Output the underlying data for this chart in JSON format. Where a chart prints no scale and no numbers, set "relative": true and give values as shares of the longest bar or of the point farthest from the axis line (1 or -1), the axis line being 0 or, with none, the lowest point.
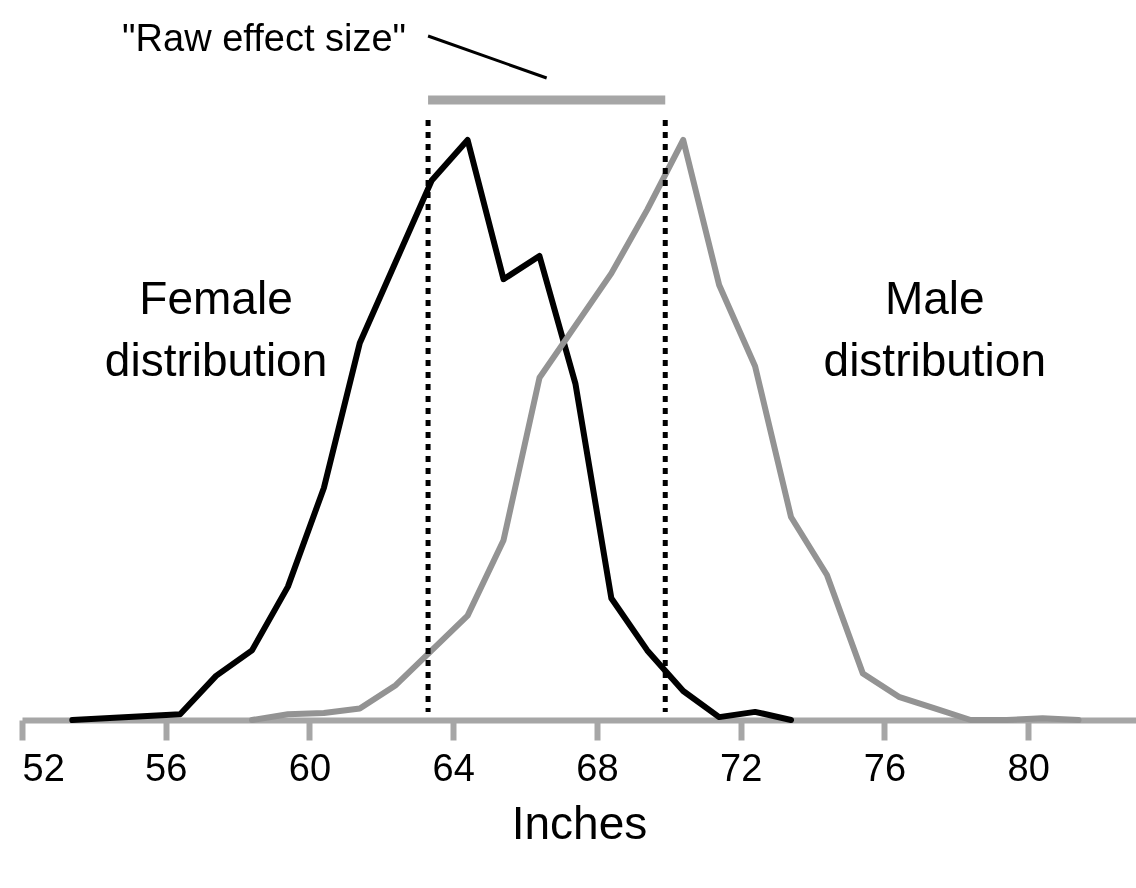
{
  "chart_data": {
    "type": "line",
    "xlabel": "Inches",
    "xlim": [
      52,
      83
    ],
    "xticks": [
      52,
      56,
      60,
      64,
      68,
      72,
      76,
      80
    ],
    "relative": true,
    "line_style": "solid",
    "series": [
      {
        "name": "Female distribution",
        "color": "#000000",
        "x": [
          53.4,
          56.4,
          57.4,
          58.4,
          59.4,
          60.4,
          61.4,
          62.4,
          63.4,
          64.4,
          65.4,
          66.4,
          67.4,
          68.4,
          69.4,
          70.4,
          71.4,
          72.4,
          73.4
        ],
        "values": [
          0,
          0.01,
          0.076,
          0.12,
          0.23,
          0.4,
          0.65,
          0.79,
          0.93,
          1,
          0.76,
          0.8,
          0.58,
          0.21,
          0.12,
          0.05,
          0.005,
          0.014,
          0
        ]
      },
      {
        "name": "Male distribution",
        "color": "#939393",
        "x": [
          58.4,
          59.4,
          60.4,
          61.4,
          62.4,
          63.4,
          64.4,
          65.4,
          66.4,
          67.4,
          68.4,
          69.4,
          70.4,
          71.4,
          72.4,
          73.4,
          74.4,
          75.4,
          76.4,
          77.4,
          78.4,
          79.4,
          80.4,
          81.4
        ],
        "values": [
          0,
          0.01,
          0.012,
          0.02,
          0.06,
          0.12,
          0.18,
          0.31,
          0.59,
          0.68,
          0.77,
          0.88,
          1,
          0.75,
          0.61,
          0.35,
          0.25,
          0.08,
          0.04,
          0.02,
          0,
          0,
          0.003,
          0
        ]
      }
    ],
    "ref_lines": [
      {
        "axis": "x",
        "value": 63.3,
        "color": "#000000",
        "line_style": "dotted"
      },
      {
        "axis": "x",
        "value": 69.9,
        "color": "#000000",
        "line_style": "dotted"
      }
    ],
    "annotations": [
      "\"Raw effect size\""
    ]
  }
}
